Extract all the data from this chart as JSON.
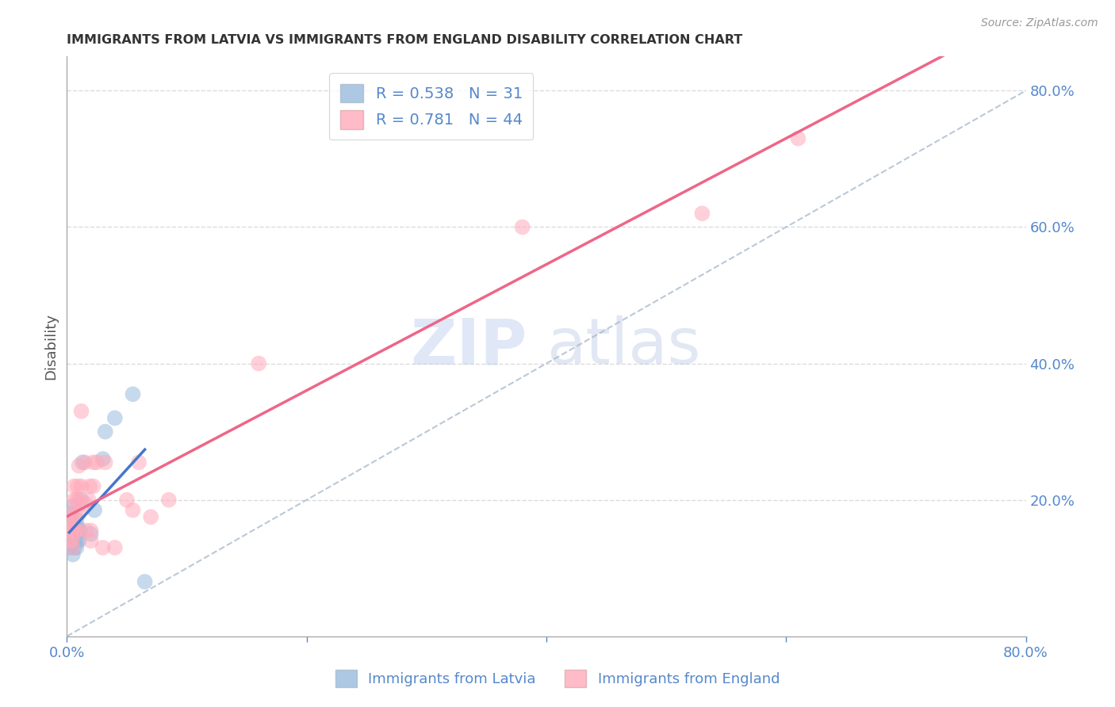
{
  "title": "IMMIGRANTS FROM LATVIA VS IMMIGRANTS FROM ENGLAND DISABILITY CORRELATION CHART",
  "source": "Source: ZipAtlas.com",
  "ylabel": "Disability",
  "xlim": [
    0,
    0.8
  ],
  "ylim": [
    0,
    0.85
  ],
  "xticks": [
    0.0,
    0.2,
    0.4,
    0.6,
    0.8
  ],
  "yticks": [
    0.2,
    0.4,
    0.6,
    0.8
  ],
  "legend_R": [
    0.538,
    0.781
  ],
  "legend_N": [
    31,
    44
  ],
  "blue_color": "#99BBDD",
  "pink_color": "#FFAABB",
  "blue_line_color": "#4477CC",
  "pink_line_color": "#EE6688",
  "diag_color": "#AABBCC",
  "blue_scatter": [
    [
      0.002,
      0.14
    ],
    [
      0.002,
      0.16
    ],
    [
      0.003,
      0.18
    ],
    [
      0.003,
      0.15
    ],
    [
      0.003,
      0.13
    ],
    [
      0.004,
      0.17
    ],
    [
      0.004,
      0.15
    ],
    [
      0.005,
      0.19
    ],
    [
      0.005,
      0.12
    ],
    [
      0.006,
      0.14
    ],
    [
      0.006,
      0.155
    ],
    [
      0.006,
      0.13
    ],
    [
      0.007,
      0.14
    ],
    [
      0.007,
      0.16
    ],
    [
      0.008,
      0.155
    ],
    [
      0.008,
      0.17
    ],
    [
      0.008,
      0.13
    ],
    [
      0.009,
      0.14
    ],
    [
      0.009,
      0.16
    ],
    [
      0.01,
      0.155
    ],
    [
      0.01,
      0.14
    ],
    [
      0.011,
      0.155
    ],
    [
      0.012,
      0.2
    ],
    [
      0.013,
      0.255
    ],
    [
      0.02,
      0.15
    ],
    [
      0.023,
      0.185
    ],
    [
      0.03,
      0.26
    ],
    [
      0.032,
      0.3
    ],
    [
      0.04,
      0.32
    ],
    [
      0.055,
      0.355
    ],
    [
      0.065,
      0.08
    ]
  ],
  "pink_scatter": [
    [
      0.002,
      0.14
    ],
    [
      0.002,
      0.155
    ],
    [
      0.003,
      0.16
    ],
    [
      0.003,
      0.17
    ],
    [
      0.004,
      0.155
    ],
    [
      0.004,
      0.18
    ],
    [
      0.004,
      0.14
    ],
    [
      0.005,
      0.16
    ],
    [
      0.005,
      0.13
    ],
    [
      0.006,
      0.15
    ],
    [
      0.006,
      0.2
    ],
    [
      0.006,
      0.22
    ],
    [
      0.007,
      0.155
    ],
    [
      0.007,
      0.18
    ],
    [
      0.008,
      0.155
    ],
    [
      0.008,
      0.2
    ],
    [
      0.009,
      0.22
    ],
    [
      0.01,
      0.25
    ],
    [
      0.01,
      0.18
    ],
    [
      0.01,
      0.2
    ],
    [
      0.012,
      0.22
    ],
    [
      0.012,
      0.33
    ],
    [
      0.015,
      0.255
    ],
    [
      0.015,
      0.195
    ],
    [
      0.016,
      0.155
    ],
    [
      0.018,
      0.2
    ],
    [
      0.019,
      0.22
    ],
    [
      0.02,
      0.155
    ],
    [
      0.02,
      0.14
    ],
    [
      0.022,
      0.255
    ],
    [
      0.022,
      0.22
    ],
    [
      0.025,
      0.255
    ],
    [
      0.03,
      0.13
    ],
    [
      0.032,
      0.255
    ],
    [
      0.04,
      0.13
    ],
    [
      0.05,
      0.2
    ],
    [
      0.055,
      0.185
    ],
    [
      0.06,
      0.255
    ],
    [
      0.07,
      0.175
    ],
    [
      0.085,
      0.2
    ],
    [
      0.16,
      0.4
    ],
    [
      0.38,
      0.6
    ],
    [
      0.53,
      0.62
    ],
    [
      0.61,
      0.73
    ]
  ],
  "watermark_zip": "ZIP",
  "watermark_atlas": "atlas",
  "background_color": "#FFFFFF",
  "grid_color": "#CCCCCC",
  "title_color": "#333333",
  "axis_label_color": "#555555",
  "tick_color": "#5588CC",
  "legend_text_color": "#5588CC"
}
